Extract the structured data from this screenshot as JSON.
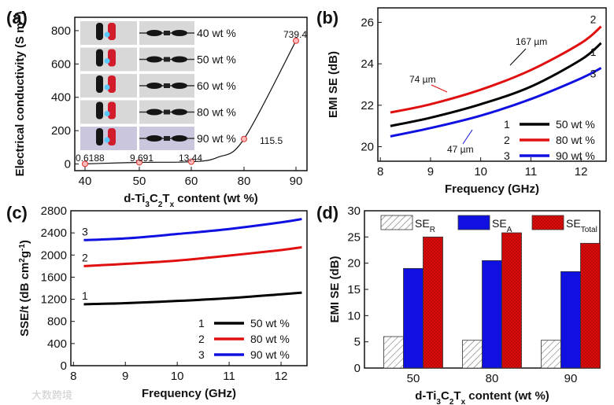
{
  "watermark": "大数跨境",
  "chart_data": [
    {
      "panel": "(a)",
      "type": "line",
      "categories": [
        "40",
        "50",
        "60",
        "80",
        "90"
      ],
      "values": [
        0.6188,
        9.691,
        13.44,
        115.5,
        739.4
      ],
      "data_labels": [
        "0.6188",
        "9.691",
        "13.44",
        "115.5",
        "739.4"
      ],
      "xlabel_parts": [
        [
          "d-Ti",
          ""
        ],
        [
          "3",
          "sub"
        ],
        [
          "C",
          ""
        ],
        [
          "2",
          "sub"
        ],
        [
          "T",
          ""
        ],
        [
          "x",
          "sub"
        ],
        [
          " content (wt %)",
          ""
        ]
      ],
      "ylabel_parts": [
        [
          "Electrical conductivity (S m",
          ""
        ],
        [
          "-1",
          "sup"
        ],
        [
          ")",
          ""
        ]
      ],
      "ylim": [
        -40,
        880
      ],
      "yticks": [
        "0",
        "200",
        "400",
        "600",
        "800"
      ],
      "inset_labels": [
        "40 wt %",
        "50 wt %",
        "60 wt %",
        "80 wt %",
        "90 wt %"
      ],
      "colors": {
        "line": "#111111",
        "marker": "#e03030"
      }
    },
    {
      "panel": "(b)",
      "type": "line",
      "xlabel_parts": [
        [
          "Frequency (GHz)",
          ""
        ]
      ],
      "ylabel_parts": [
        [
          "EMI SE (dB)",
          ""
        ]
      ],
      "xlim": [
        7.95,
        12.5
      ],
      "ylim": [
        19.3,
        26.7
      ],
      "xticks": [
        "8",
        "9",
        "10",
        "11",
        "12"
      ],
      "yticks": [
        "20",
        "22",
        "24",
        "26"
      ],
      "series": [
        {
          "num": "1",
          "name": "50 wt %",
          "color": "#000000",
          "x": [
            8.2,
            9,
            10,
            11,
            12,
            12.4
          ],
          "y": [
            21.0,
            21.4,
            22.05,
            22.9,
            24.2,
            25.0
          ]
        },
        {
          "num": "2",
          "name": "80 wt %",
          "color": "#e01010",
          "x": [
            8.2,
            9,
            10,
            11,
            12,
            12.4
          ],
          "y": [
            21.65,
            22.05,
            22.75,
            23.7,
            25.0,
            25.8
          ]
        },
        {
          "num": "3",
          "name": "90 wt %",
          "color": "#1010e0",
          "x": [
            8.2,
            9,
            10,
            11,
            12,
            12.4
          ],
          "y": [
            20.5,
            20.9,
            21.5,
            22.3,
            23.3,
            23.8
          ]
        }
      ],
      "annotations": [
        "167 µm",
        "74 µm",
        "47 µm"
      ]
    },
    {
      "panel": "(c)",
      "type": "line",
      "xlabel_parts": [
        [
          "Frequency (GHz)",
          ""
        ]
      ],
      "ylabel_parts": [
        [
          "SSE/t (dB cm",
          ""
        ],
        [
          "2",
          "sup"
        ],
        [
          "g",
          ""
        ],
        [
          "-1",
          "sup"
        ],
        [
          ")",
          ""
        ]
      ],
      "xlim": [
        7.95,
        12.5
      ],
      "ylim": [
        0,
        2800
      ],
      "xticks": [
        "8",
        "9",
        "10",
        "11",
        "12"
      ],
      "yticks": [
        "0",
        "400",
        "800",
        "1200",
        "1600",
        "2000",
        "2400",
        "2800"
      ],
      "series": [
        {
          "num": "1",
          "name": "50 wt %",
          "color": "#000000",
          "x": [
            8.2,
            9,
            10,
            11,
            12,
            12.4
          ],
          "y": [
            1110,
            1130,
            1170,
            1220,
            1290,
            1320
          ]
        },
        {
          "num": "2",
          "name": "80 wt %",
          "color": "#e01010",
          "x": [
            8.2,
            9,
            10,
            11,
            12,
            12.4
          ],
          "y": [
            1800,
            1840,
            1900,
            1990,
            2090,
            2140
          ]
        },
        {
          "num": "3",
          "name": "90 wt %",
          "color": "#1010e0",
          "x": [
            8.2,
            9,
            10,
            11,
            12,
            12.4
          ],
          "y": [
            2270,
            2300,
            2380,
            2470,
            2590,
            2650
          ]
        }
      ]
    },
    {
      "panel": "(d)",
      "type": "bar",
      "categories": [
        "50",
        "80",
        "90"
      ],
      "xlabel_parts": [
        [
          "d-Ti",
          ""
        ],
        [
          "3",
          "sub"
        ],
        [
          "C",
          ""
        ],
        [
          "2",
          "sub"
        ],
        [
          "T",
          ""
        ],
        [
          "x",
          "sub"
        ],
        [
          " content (wt %)",
          ""
        ]
      ],
      "ylabel_parts": [
        [
          "EMI SE (dB)",
          ""
        ]
      ],
      "ylim": [
        0,
        30
      ],
      "yticks": [
        "0",
        "5",
        "10",
        "15",
        "20",
        "25",
        "30"
      ],
      "series": [
        {
          "name_parts": [
            [
              "SE",
              ""
            ],
            [
              "R",
              "sub"
            ]
          ],
          "fill": "hatch",
          "values": [
            6.0,
            5.3,
            5.3
          ]
        },
        {
          "name_parts": [
            [
              "SE",
              ""
            ],
            [
              "A",
              "sub"
            ]
          ],
          "fill": "#1010e0",
          "values": [
            19.0,
            20.5,
            18.4
          ]
        },
        {
          "name_parts": [
            [
              "SE",
              ""
            ],
            [
              "Total",
              "sub"
            ]
          ],
          "fill": "#e01010",
          "values": [
            25.0,
            25.8,
            23.8
          ]
        }
      ]
    }
  ]
}
